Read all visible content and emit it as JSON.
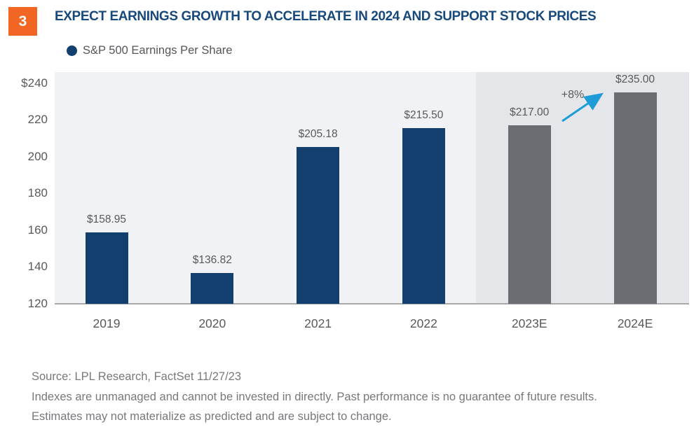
{
  "figure": {
    "number": "3",
    "title": "EXPECT EARNINGS GROWTH TO ACCELERATE IN 2024 AND SUPPORT STOCK PRICES"
  },
  "legend": {
    "label": "S&P 500 Earnings Per Share"
  },
  "chart_data": {
    "type": "bar",
    "title": "S&P 500 Earnings Per Share",
    "categories": [
      "2019",
      "2020",
      "2021",
      "2022",
      "2023E",
      "2024E"
    ],
    "values": [
      158.95,
      136.82,
      205.18,
      215.5,
      217.0,
      235.0
    ],
    "value_labels": [
      "$158.95",
      "$136.82",
      "$205.18",
      "$215.50",
      "$217.00",
      "$235.00"
    ],
    "estimate_categories": [
      "2023E",
      "2024E"
    ],
    "annotation": {
      "text": "+8%"
    },
    "xlabel": "",
    "ylabel": "",
    "ylim": [
      120,
      246
    ],
    "yticks": [
      240,
      220,
      200,
      180,
      160,
      140,
      120
    ],
    "ytick_labels": [
      "$240",
      "220",
      "200",
      "180",
      "160",
      "140",
      "120"
    ],
    "grid": false,
    "legend_position": "top-left",
    "colors": {
      "actual_bar": "#123f6d",
      "estimate_bar": "#6b6d72",
      "plot_background": "#f1f2f5",
      "estimate_background": "#e5e6ea",
      "arrow": "#1e9cd8",
      "title": "#17497c",
      "badge": "#f16623"
    }
  },
  "footer": {
    "source": "Source: LPL Research, FactSet  11/27/23",
    "disclaimer_line1": "Indexes are unmanaged and cannot be invested in directly. Past performance is no guarantee of future results.",
    "disclaimer_line2": "Estimates may not materialize as predicted and are subject to change."
  }
}
